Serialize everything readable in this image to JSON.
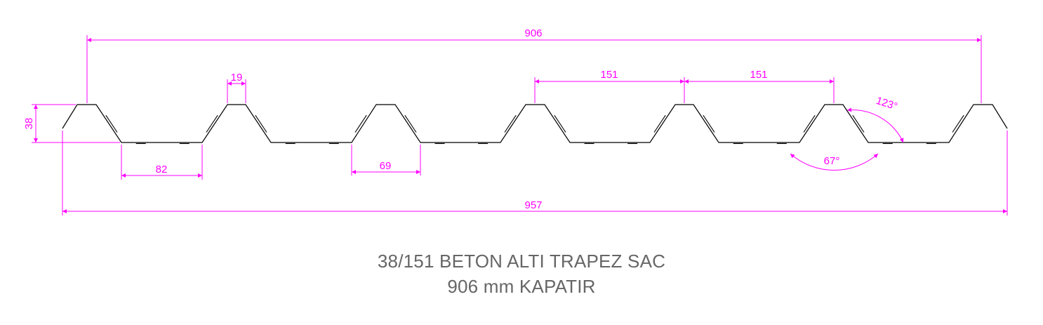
{
  "drawing": {
    "colors": {
      "profile": "#000000",
      "dimension": "#ff00ff",
      "title": "#666666"
    },
    "dimensions": {
      "cover_width": "906",
      "total_width": "957",
      "rib_height": "38",
      "rib_top": "19",
      "pitch_1": "151",
      "pitch_2": "151",
      "valley_width": "82",
      "rib_bottom": "69",
      "angle_outer": "123°",
      "angle_inner": "67°"
    },
    "title": {
      "line1": "38/151 BETON ALTI TRAPEZ SAC",
      "line2": "906 mm KAPATIR"
    }
  }
}
